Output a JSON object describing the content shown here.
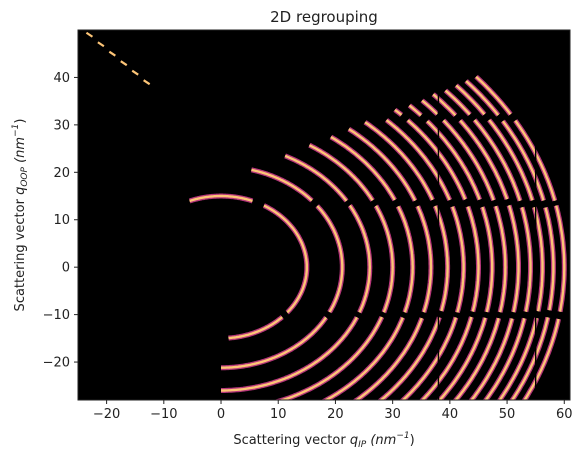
{
  "chart_data": {
    "type": "heatmap",
    "title": "2D regrouping",
    "xlabel": "Scattering vector",
    "xlabel_symbol": "q",
    "xlabel_sub": "IP",
    "xlabel_unit": "(nm",
    "xlabel_unit_exp": "−1",
    "xlabel_unit_close": ")",
    "ylabel": "Scattering vector",
    "ylabel_symbol": "q",
    "ylabel_sub": "OOP",
    "ylabel_unit": "(nm",
    "ylabel_unit_exp": "−1",
    "ylabel_unit_close": ")",
    "xlim": [
      -25,
      61
    ],
    "ylim": [
      -28,
      50
    ],
    "x_ticks": [
      -20,
      -10,
      0,
      10,
      20,
      30,
      40,
      50,
      60
    ],
    "x_tick_labels": [
      "−20",
      "−10",
      "0",
      "10",
      "20",
      "30",
      "40",
      "50",
      "60"
    ],
    "y_ticks": [
      -20,
      -10,
      0,
      10,
      20,
      30,
      40
    ],
    "y_tick_labels": [
      "−20",
      "−10",
      "0",
      "10",
      "20",
      "30",
      "40"
    ],
    "colormap": "inferno",
    "background_color": "#000000",
    "ring_color_outer": "#b5367a",
    "ring_color_inner": "#fdc577",
    "ring_center": [
      0,
      0
    ],
    "ring_radii": [
      15,
      21.2,
      26,
      30,
      33.5,
      36.7,
      39.6,
      42.4,
      45,
      47.4,
      49.7,
      52,
      54.1,
      56.2,
      58.1,
      60
    ],
    "detector_gap_rows_y": [
      -10,
      13.5,
      31.5,
      43.5
    ],
    "detector_gap_cols_x": [
      38,
      55
    ],
    "mask_wedge_boundary_x_at_y": [
      [
        -16,
        -9
      ],
      [
        -6,
        15
      ],
      [
        0,
        18
      ],
      [
        2,
        -13
      ],
      [
        -2,
        -23
      ],
      [
        -4,
        -28
      ]
    ]
  }
}
